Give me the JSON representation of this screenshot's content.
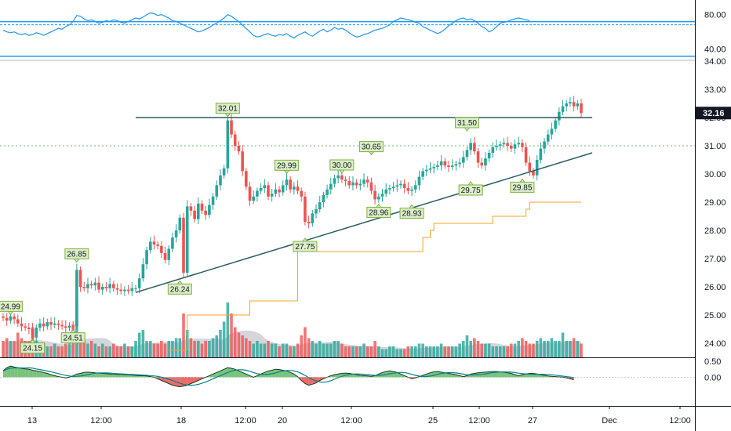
{
  "colors": {
    "up": "#26a69a",
    "down": "#ef5350",
    "rsi": "#2196f3",
    "trendline": "#2a5d5f",
    "ma": "#f5a623",
    "volume_ma": "#b2b5be",
    "label_bg": "#dcedc8",
    "label_border": "#7cb342",
    "osc_pos": "#4caf50",
    "osc_neg": "#e53935",
    "current_price_bg": "#131722",
    "dotted_level": "#66bb6a"
  },
  "chart_data": [
    {
      "type": "line",
      "panel": "rsi",
      "ylim": [
        28,
        95
      ],
      "y_ticks": [
        "80.00",
        "40.00"
      ],
      "bands": [
        70,
        30
      ],
      "values": [
        62,
        60,
        59,
        60,
        58,
        57,
        58,
        56,
        57,
        59,
        58,
        56,
        58,
        60,
        62,
        64,
        63,
        66,
        68,
        72,
        79,
        78,
        75,
        73,
        74,
        72,
        70,
        71,
        73,
        72,
        74,
        73,
        71,
        70,
        72,
        74,
        76,
        75,
        77,
        80,
        82,
        81,
        79,
        80,
        78,
        76,
        73,
        72,
        70,
        68,
        66,
        64,
        62,
        60,
        61,
        63,
        65,
        68,
        70,
        73,
        76,
        80,
        78,
        75,
        72,
        68,
        64,
        60,
        56,
        54,
        55,
        57,
        58,
        56,
        55,
        57,
        56,
        58,
        55,
        53,
        56,
        58,
        60,
        57,
        55,
        58,
        61,
        63,
        60,
        62,
        65,
        63,
        64,
        62,
        59,
        56,
        54,
        55,
        57,
        58,
        60,
        62,
        63,
        64,
        66,
        68,
        72,
        74,
        76,
        75,
        74,
        73,
        71,
        70,
        66,
        64,
        62,
        60,
        58,
        60,
        63,
        67,
        70,
        73,
        75,
        76,
        74,
        75,
        73,
        70,
        66,
        64,
        60,
        62,
        66,
        70,
        71,
        72,
        74,
        75,
        76,
        75,
        74,
        73
      ]
    },
    {
      "type": "candlestick",
      "panel": "price",
      "ylim": [
        23.5,
        34.0
      ],
      "y_ticks": [
        "34.00",
        "33.00",
        "32.00",
        "31.00",
        "30.00",
        "29.00",
        "28.00",
        "27.00",
        "26.00",
        "25.00",
        "24.00"
      ],
      "x_ticks": [
        "13",
        "12:00",
        "18",
        "12:00",
        "20",
        "12:00",
        "25",
        "12:00",
        "27",
        "Dec",
        "12:00"
      ],
      "current_price": "32.16",
      "dotted_level": 31.0,
      "horizontal_resistance": {
        "start_index": 36,
        "end_index": 160,
        "value": 32.0
      },
      "trendline": {
        "start_index": 36,
        "start_value": 25.8,
        "end_index": 160,
        "end_value": 30.75
      },
      "price_labels": [
        {
          "text": "24.99",
          "index": 2,
          "value": 24.99,
          "position": "above"
        },
        {
          "text": "24.15",
          "index": 8,
          "value": 24.15,
          "position": "below"
        },
        {
          "text": "26.85",
          "index": 20,
          "value": 26.85,
          "position": "above"
        },
        {
          "text": "24.51",
          "index": 19,
          "value": 24.51,
          "position": "below"
        },
        {
          "text": "26.24",
          "index": 48,
          "value": 26.24,
          "position": "below"
        },
        {
          "text": "32.01",
          "index": 61,
          "value": 32.01,
          "position": "above"
        },
        {
          "text": "29.99",
          "index": 77,
          "value": 29.99,
          "position": "above"
        },
        {
          "text": "27.75",
          "index": 82,
          "value": 27.75,
          "position": "below"
        },
        {
          "text": "30.00",
          "index": 92,
          "value": 30.0,
          "position": "above"
        },
        {
          "text": "30.65",
          "index": 100,
          "value": 30.65,
          "position": "above"
        },
        {
          "text": "28.96",
          "index": 102,
          "value": 28.96,
          "position": "below"
        },
        {
          "text": "28.93",
          "index": 111,
          "value": 28.93,
          "position": "below"
        },
        {
          "text": "31.50",
          "index": 126,
          "value": 31.5,
          "position": "above"
        },
        {
          "text": "29.75",
          "index": 127,
          "value": 29.75,
          "position": "below"
        },
        {
          "text": "29.85",
          "index": 141,
          "value": 29.85,
          "position": "below"
        }
      ],
      "closes": [
        24.9,
        24.8,
        24.95,
        24.85,
        24.7,
        24.6,
        24.55,
        24.5,
        24.2,
        24.55,
        24.7,
        24.6,
        24.75,
        24.65,
        24.7,
        24.65,
        24.6,
        24.55,
        24.62,
        24.6,
        26.6,
        26.0,
        25.95,
        26.1,
        26.05,
        26.15,
        25.9,
        26.0,
        25.95,
        26.1,
        25.95,
        25.9,
        25.85,
        25.9,
        25.85,
        25.95,
        25.95,
        26.3,
        26.8,
        27.3,
        27.6,
        27.5,
        27.45,
        27.2,
        26.95,
        27.35,
        27.75,
        28.0,
        28.45,
        26.5,
        28.85,
        28.7,
        28.4,
        28.95,
        28.7,
        28.55,
        28.9,
        29.2,
        29.6,
        29.95,
        30.2,
        31.9,
        31.4,
        31.0,
        30.8,
        30.1,
        29.55,
        29.05,
        29.2,
        29.4,
        29.5,
        29.6,
        29.2,
        29.3,
        29.45,
        29.35,
        29.6,
        29.8,
        29.45,
        29.55,
        29.4,
        29.2,
        28.3,
        28.25,
        28.6,
        28.75,
        29.0,
        29.25,
        29.45,
        29.65,
        29.85,
        29.95,
        29.8,
        29.75,
        29.6,
        29.7,
        29.6,
        29.65,
        29.8,
        29.7,
        29.4,
        29.1,
        29.2,
        29.3,
        29.45,
        29.5,
        29.55,
        29.6,
        29.65,
        29.5,
        29.4,
        29.45,
        29.6,
        29.9,
        30.1,
        30.15,
        30.2,
        30.25,
        30.3,
        30.45,
        30.3,
        30.25,
        30.3,
        30.35,
        30.4,
        30.6,
        30.85,
        31.1,
        30.8,
        30.4,
        30.3,
        30.55,
        30.75,
        30.95,
        31.0,
        31.05,
        31.1,
        31.0,
        30.9,
        31.05,
        31.1,
        30.95,
        30.4,
        30.1,
        29.95,
        30.5,
        30.9,
        31.15,
        31.4,
        31.6,
        31.9,
        32.2,
        32.4,
        32.5,
        32.55,
        32.4,
        32.5,
        32.16
      ],
      "volumes": [
        0.3,
        0.35,
        0.3,
        0.3,
        0.45,
        0.35,
        0.3,
        0.3,
        0.55,
        0.3,
        0.25,
        0.25,
        0.2,
        0.2,
        0.25,
        0.2,
        0.2,
        0.25,
        0.3,
        0.6,
        1.0,
        0.45,
        0.3,
        0.25,
        0.3,
        0.25,
        0.2,
        0.25,
        0.2,
        0.2,
        0.25,
        0.2,
        0.2,
        0.25,
        0.2,
        0.2,
        0.3,
        0.45,
        0.5,
        0.3,
        0.3,
        0.25,
        0.25,
        0.3,
        0.25,
        0.3,
        0.3,
        0.35,
        0.35,
        0.8,
        0.5,
        0.35,
        0.3,
        0.3,
        0.25,
        0.3,
        0.3,
        0.35,
        0.4,
        0.5,
        0.65,
        1.0,
        0.8,
        0.55,
        0.45,
        0.4,
        0.35,
        0.3,
        0.25,
        0.3,
        0.25,
        0.25,
        0.3,
        0.25,
        0.25,
        0.2,
        0.25,
        0.25,
        0.2,
        0.2,
        0.25,
        0.4,
        0.55,
        0.35,
        0.3,
        0.25,
        0.3,
        0.25,
        0.25,
        0.25,
        0.3,
        0.3,
        0.25,
        0.2,
        0.2,
        0.2,
        0.2,
        0.2,
        0.25,
        0.2,
        0.2,
        0.3,
        0.2,
        0.15,
        0.15,
        0.2,
        0.2,
        0.15,
        0.15,
        0.15,
        0.2,
        0.2,
        0.2,
        0.25,
        0.25,
        0.2,
        0.2,
        0.2,
        0.2,
        0.25,
        0.2,
        0.2,
        0.2,
        0.2,
        0.25,
        0.3,
        0.4,
        0.3,
        0.35,
        0.3,
        0.25,
        0.25,
        0.25,
        0.2,
        0.2,
        0.2,
        0.2,
        0.2,
        0.25,
        0.25,
        0.3,
        0.35,
        0.3,
        0.25,
        0.25,
        0.3,
        0.35,
        0.3,
        0.3,
        0.35,
        0.3,
        0.3,
        0.45,
        0.3,
        0.3,
        0.35,
        0.3,
        0.25
      ]
    },
    {
      "type": "area",
      "panel": "oscillator",
      "ylim": [
        -0.9,
        0.6
      ],
      "y_ticks": [
        "0.50",
        "0.00"
      ],
      "values": [
        0.2,
        0.3,
        0.35,
        0.32,
        0.3,
        0.28,
        0.26,
        0.25,
        0.22,
        0.2,
        0.18,
        0.15,
        0.12,
        0.08,
        0.05,
        0.02,
        0.0,
        -0.02,
        0.0,
        0.05,
        0.1,
        0.12,
        0.15,
        0.16,
        0.15,
        0.14,
        0.13,
        0.12,
        0.11,
        0.1,
        0.1,
        0.09,
        0.09,
        0.08,
        0.08,
        0.07,
        0.06,
        0.05,
        0.05,
        0.04,
        0.02,
        0.0,
        -0.05,
        -0.1,
        -0.15,
        -0.2,
        -0.25,
        -0.28,
        -0.3,
        -0.28,
        -0.25,
        -0.2,
        -0.15,
        -0.1,
        -0.05,
        0.0,
        0.05,
        0.1,
        0.15,
        0.2,
        0.25,
        0.3,
        0.28,
        0.25,
        0.2,
        0.15,
        0.1,
        0.05,
        0.0,
        0.05,
        0.1,
        0.15,
        0.2,
        0.22,
        0.25,
        0.24,
        0.22,
        0.2,
        0.15,
        0.1,
        0.02,
        -0.1,
        -0.2,
        -0.25,
        -0.22,
        -0.18,
        -0.1,
        -0.05,
        0.0,
        0.05,
        0.08,
        0.1,
        0.12,
        0.13,
        0.12,
        0.1,
        0.08,
        0.06,
        0.05,
        0.04,
        0.03,
        0.05,
        0.1,
        0.15,
        0.18,
        0.2,
        0.18,
        0.15,
        0.1,
        0.05,
        0.0,
        -0.05,
        -0.02,
        0.02,
        0.06,
        0.1,
        0.14,
        0.17,
        0.18,
        0.16,
        0.14,
        0.12,
        0.1,
        0.08,
        0.05,
        0.02,
        0.05,
        0.1,
        0.12,
        0.14,
        0.15,
        0.16,
        0.17,
        0.18,
        0.18,
        0.17,
        0.16,
        0.14,
        0.12,
        0.08,
        0.05,
        0.08,
        0.1,
        0.12,
        0.12,
        0.1,
        0.08,
        0.06,
        0.04,
        0.03,
        0.02,
        0.01,
        0.0,
        -0.02,
        -0.05,
        -0.08
      ]
    }
  ]
}
